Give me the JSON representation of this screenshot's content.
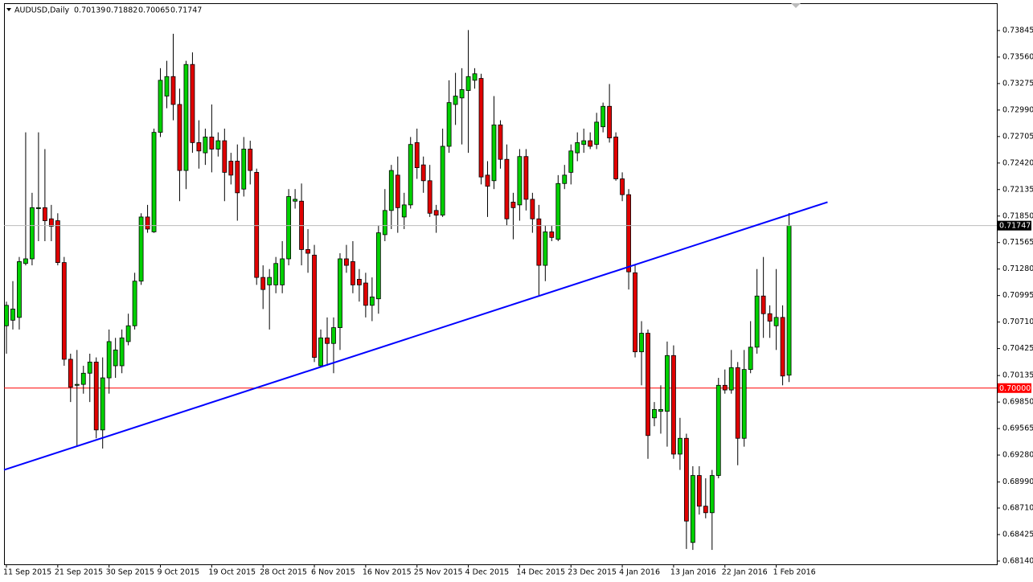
{
  "chart_data": {
    "type": "candlestick",
    "title": "AUDUSD,Daily",
    "categories": [
      "11 Sep 2015",
      null,
      null,
      null,
      null,
      null,
      null,
      null,
      "21 Sep 2015",
      null,
      null,
      null,
      null,
      null,
      null,
      null,
      "30 Sep 2015",
      null,
      null,
      null,
      null,
      null,
      null,
      null,
      "9 Oct 2015",
      null,
      null,
      null,
      null,
      null,
      null,
      null,
      "19 Oct 2015",
      null,
      null,
      null,
      null,
      null,
      null,
      null,
      "28 Oct 2015",
      null,
      null,
      null,
      null,
      null,
      null,
      null,
      "6 Nov 2015",
      null,
      null,
      null,
      null,
      null,
      null,
      null,
      "16 Nov 2015",
      null,
      null,
      null,
      null,
      null,
      null,
      null,
      "25 Nov 2015",
      null,
      null,
      null,
      null,
      null,
      null,
      null,
      "4 Dec 2015",
      null,
      null,
      null,
      null,
      null,
      null,
      null,
      "14 Dec 2015",
      null,
      null,
      null,
      null,
      null,
      null,
      null,
      "23 Dec 2015",
      null,
      null,
      null,
      null,
      null,
      null,
      null,
      "4 Jan 2016",
      null,
      null,
      null,
      null,
      null,
      null,
      null,
      "13 Jan 2016",
      null,
      null,
      null,
      null,
      null,
      null,
      null,
      "22 Jan 2016",
      null,
      null,
      null,
      null,
      null,
      null,
      null,
      "1 Feb 2016",
      null,
      null
    ],
    "open": [
      0.7067,
      0.7073,
      0.7076,
      0.7134,
      0.7139,
      0.7193,
      0.7194,
      0.7182,
      0.718,
      0.7135,
      0.7031,
      0.7003,
      0.7004,
      0.7016,
      0.7028,
      0.6955,
      0.7011,
      0.7024,
      0.7024,
      0.705,
      0.7067,
      0.7115,
      0.7184,
      0.7168,
      0.7275,
      0.7314,
      0.7335,
      0.7305,
      0.7234,
      0.7348,
      0.7264,
      0.7253,
      0.727,
      0.7257,
      0.7266,
      0.7244,
      0.7244,
      0.7214,
      0.7257,
      0.7232,
      0.7119,
      0.7111,
      0.7111,
      0.7111,
      0.7139,
      0.7201,
      0.7201,
      0.7149,
      0.7143,
      0.7024,
      0.7054,
      0.7048,
      0.7065,
      0.7139,
      0.7136,
      0.7117,
      0.7113,
      0.7089,
      0.7096,
      0.7165,
      0.7191,
      0.7229,
      0.7184,
      0.7197,
      0.7264,
      0.724,
      0.7223,
      0.7191,
      0.7186,
      0.726,
      0.7305,
      0.7312,
      0.732,
      0.7331,
      0.7333,
      0.7229,
      0.7223,
      0.7283,
      0.7246,
      0.72,
      0.7197,
      0.7249,
      0.7203,
      0.7182,
      0.7132,
      0.7168,
      0.716,
      0.722,
      0.7232,
      0.7253,
      0.7262,
      0.7266,
      0.7262,
      0.7281,
      0.7303,
      0.727,
      0.7225,
      0.7208,
      0.7124,
      0.7039,
      0.7059,
      0.6968,
      0.6975,
      0.6975,
      0.7035,
      0.6929,
      0.6946,
      0.6834,
      0.6906,
      0.6873,
      0.6866,
      0.6906,
      0.7003,
      0.6998,
      0.7022,
      0.6946,
      0.702,
      0.7044,
      0.7099,
      0.708,
      0.7067,
      0.7076,
      0.70139
    ],
    "high": [
      0.7093,
      0.7115,
      0.7141,
      0.7275,
      0.721,
      0.7275,
      0.7257,
      0.7197,
      0.7188,
      0.7141,
      0.7037,
      0.7041,
      0.7024,
      0.7037,
      0.7033,
      0.7033,
      0.7063,
      0.7054,
      0.7063,
      0.708,
      0.7124,
      0.7188,
      0.7197,
      0.7279,
      0.7344,
      0.7352,
      0.7381,
      0.7322,
      0.7352,
      0.7361,
      0.7288,
      0.7279,
      0.7305,
      0.7275,
      0.7279,
      0.7253,
      0.7262,
      0.727,
      0.7266,
      0.7236,
      0.7132,
      0.7128,
      0.7141,
      0.7158,
      0.7214,
      0.7214,
      0.722,
      0.7171,
      0.7154,
      0.7063,
      0.7076,
      0.7076,
      0.7145,
      0.7154,
      0.7158,
      0.7128,
      0.7124,
      0.7119,
      0.7175,
      0.7214,
      0.724,
      0.7249,
      0.721,
      0.727,
      0.7279,
      0.7249,
      0.724,
      0.7197,
      0.7279,
      0.7331,
      0.7339,
      0.7344,
      0.7385,
      0.7344,
      0.7338,
      0.7244,
      0.7314,
      0.7288,
      0.7262,
      0.721,
      0.7257,
      0.7257,
      0.721,
      0.7197,
      0.7175,
      0.7175,
      0.7229,
      0.724,
      0.7262,
      0.7275,
      0.7279,
      0.7275,
      0.7296,
      0.7307,
      0.7327,
      0.7275,
      0.7232,
      0.7214,
      0.7132,
      0.7072,
      0.7063,
      0.6985,
      0.7003,
      0.705,
      0.7046,
      0.6968,
      0.6951,
      0.6916,
      0.6916,
      0.6903,
      0.6912,
      0.7011,
      0.702,
      0.7041,
      0.7028,
      0.7041,
      0.7072,
      0.7128,
      0.7141,
      0.7089,
      0.7128,
      0.7089,
      0.71882
    ],
    "low": [
      0.7037,
      0.7063,
      0.7063,
      0.7132,
      0.7132,
      0.7158,
      0.7158,
      0.7158,
      0.7132,
      0.7024,
      0.6985,
      0.6937,
      0.6994,
      0.6985,
      0.6946,
      0.6935,
      0.6994,
      0.7011,
      0.7016,
      0.7046,
      0.7063,
      0.7111,
      0.7167,
      0.7167,
      0.727,
      0.7301,
      0.7288,
      0.7201,
      0.7214,
      0.7253,
      0.7236,
      0.724,
      0.7232,
      0.7249,
      0.7201,
      0.7219,
      0.718,
      0.7206,
      0.7219,
      0.7111,
      0.7085,
      0.7063,
      0.7102,
      0.7102,
      0.7132,
      0.7193,
      0.7132,
      0.7124,
      0.7028,
      0.7022,
      0.7024,
      0.7016,
      0.7041,
      0.7124,
      0.7102,
      0.7093,
      0.7076,
      0.7072,
      0.708,
      0.7158,
      0.7171,
      0.7167,
      0.7171,
      0.7193,
      0.7225,
      0.721,
      0.7184,
      0.7167,
      0.7184,
      0.7253,
      0.7283,
      0.7262,
      0.7253,
      0.7322,
      0.7219,
      0.7184,
      0.7214,
      0.7236,
      0.7175,
      0.716,
      0.718,
      0.7191,
      0.7167,
      0.7099,
      0.7115,
      0.7158,
      0.7158,
      0.7214,
      0.7219,
      0.7244,
      0.7253,
      0.7257,
      0.7257,
      0.7275,
      0.7264,
      0.7223,
      0.7201,
      0.7106,
      0.7033,
      0.7003,
      0.6924,
      0.6959,
      0.6951,
      0.6937,
      0.6924,
      0.6912,
      0.6827,
      0.6826,
      0.6864,
      0.686,
      0.6826,
      0.6903,
      0.6994,
      0.6994,
      0.6917,
      0.6937,
      0.7016,
      0.7037,
      0.7054,
      0.7054,
      0.7041,
      0.7003,
      0.70065
    ],
    "close": [
      0.7089,
      0.7085,
      0.7136,
      0.7139,
      0.7194,
      0.7194,
      0.718,
      0.7174,
      0.7135,
      0.7031,
      0.7001,
      0.7004,
      0.7016,
      0.7028,
      0.6955,
      0.7011,
      0.705,
      0.7041,
      0.7054,
      0.7067,
      0.7115,
      0.7184,
      0.7171,
      0.7275,
      0.7331,
      0.7335,
      0.7305,
      0.7234,
      0.7348,
      0.7264,
      0.7255,
      0.727,
      0.7257,
      0.7266,
      0.7232,
      0.7229,
      0.721,
      0.7257,
      0.7234,
      0.7119,
      0.7106,
      0.7119,
      0.7134,
      0.7139,
      0.7206,
      0.7203,
      0.7149,
      0.7145,
      0.7033,
      0.7054,
      0.7048,
      0.7065,
      0.7139,
      0.7132,
      0.7111,
      0.7111,
      0.7089,
      0.7098,
      0.7167,
      0.7191,
      0.7234,
      0.7194,
      0.7197,
      0.7262,
      0.7237,
      0.7223,
      0.7188,
      0.7186,
      0.726,
      0.7307,
      0.7314,
      0.7321,
      0.7335,
      0.7338,
      0.7227,
      0.7217,
      0.7283,
      0.7246,
      0.7182,
      0.7194,
      0.7249,
      0.7203,
      0.7182,
      0.7132,
      0.7168,
      0.7162,
      0.722,
      0.7229,
      0.7255,
      0.7264,
      0.7266,
      0.726,
      0.7286,
      0.7303,
      0.7269,
      0.7225,
      0.7208,
      0.7125,
      0.7039,
      0.7059,
      0.6949,
      0.6977,
      0.6977,
      0.7035,
      0.6929,
      0.6946,
      0.6857,
      0.6906,
      0.6873,
      0.6866,
      0.6906,
      0.7003,
      0.6998,
      0.7022,
      0.6946,
      0.702,
      0.7044,
      0.7099,
      0.708,
      0.7072,
      0.7076,
      0.7013,
      0.71747
    ],
    "up_color": "#00d000",
    "down_color": "#e00000",
    "ylim": [
      0.68105,
      0.7413
    ],
    "yticks": [
      0.73845,
      {
        "value": 0.7356,
        "label": "0.73560"
      },
      0.73275,
      {
        "value": 0.7299,
        "label": "0.72990"
      },
      0.72705,
      {
        "value": 0.7242,
        "label": "0.72420"
      },
      0.72135,
      {
        "value": 0.7185,
        "label": "0.71850"
      },
      0.71565,
      {
        "value": 0.7128,
        "label": "0.71280"
      },
      0.70995,
      {
        "value": 0.7071,
        "label": "0.70710"
      },
      0.70425,
      0.70135,
      {
        "value": 0.6985,
        "label": "0.69850"
      },
      0.69565,
      {
        "value": 0.6928,
        "label": "0.69280"
      },
      {
        "value": 0.6899,
        "label": "0.68990"
      },
      {
        "value": 0.6871,
        "label": "0.68710"
      },
      0.68425,
      {
        "value": 0.6814,
        "label": "0.68140"
      }
    ],
    "levels": [
      {
        "value": 0.7,
        "label": "0.70000",
        "color": "#ff0000"
      }
    ],
    "trendline": {
      "color": "#0000ff",
      "values": [
        0.6912,
        0.72
      ]
    }
  }
}
